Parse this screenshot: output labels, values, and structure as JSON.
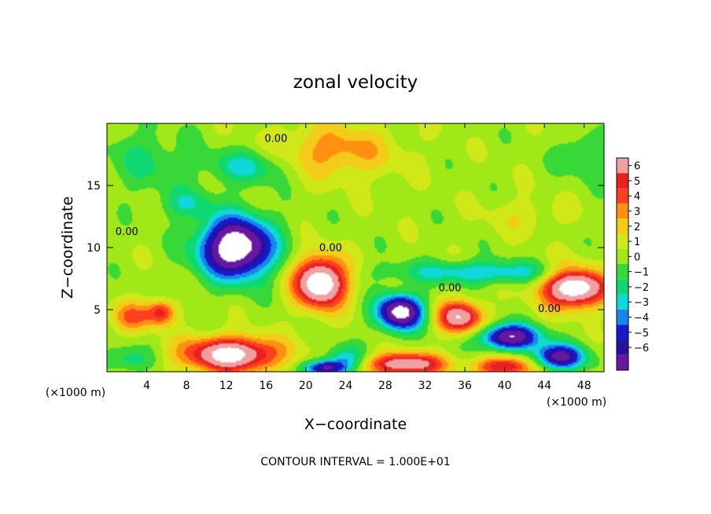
{
  "chart_data": {
    "type": "heatmap",
    "title": "zonal velocity",
    "xlabel": "X−coordinate",
    "ylabel": "Z−coordinate",
    "x_unit_left": "(×1000 m)",
    "x_unit_right": "(×1000 m)",
    "footer": "CONTOUR INTERVAL = 1.000E+01",
    "xlim": [
      0,
      50
    ],
    "ylim": [
      0,
      20
    ],
    "x_ticks": [
      4,
      8,
      12,
      16,
      20,
      24,
      28,
      32,
      36,
      40,
      44,
      48
    ],
    "y_ticks": [
      5,
      10,
      15
    ],
    "colorbar": {
      "range": [
        -6,
        6
      ],
      "labels": [
        "6",
        "5",
        "4",
        "3",
        "2",
        "1",
        "0",
        "−1",
        "−2",
        "−3",
        "−4",
        "−5",
        "−6"
      ],
      "colors": [
        "#f0a0a0",
        "#e82020",
        "#ff4020",
        "#ff9010",
        "#f2cc18",
        "#d0e818",
        "#a0e818",
        "#38d838",
        "#10d870",
        "#10d8d8",
        "#1888e8",
        "#1818d0",
        "#2810a0",
        "#6818a0"
      ]
    },
    "background_value": 0.5,
    "features": [
      {
        "x": 13,
        "z": 10,
        "rx": 3.6,
        "rz": 2.4,
        "value": -9
      },
      {
        "x": 21.5,
        "z": 7.2,
        "rx": 2.6,
        "rz": 2.0,
        "value": 8
      },
      {
        "x": 29.5,
        "z": 4.8,
        "rx": 2.3,
        "rz": 1.4,
        "value": -8
      },
      {
        "x": 35.5,
        "z": 4.4,
        "rx": 2.3,
        "rz": 1.3,
        "value": 6
      },
      {
        "x": 47,
        "z": 6.8,
        "rx": 3.2,
        "rz": 1.6,
        "value": 8
      },
      {
        "x": 40.5,
        "z": 2.8,
        "rx": 3.0,
        "rz": 1.0,
        "value": -7
      },
      {
        "x": 12.5,
        "z": 1.4,
        "rx": 4.8,
        "rz": 1.4,
        "value": 7
      },
      {
        "x": 5.5,
        "z": 4.8,
        "rx": 1.4,
        "rz": 1.0,
        "value": 4
      },
      {
        "x": 2.5,
        "z": 4.4,
        "rx": 2.2,
        "rz": 1.2,
        "value": 3
      },
      {
        "x": 30,
        "z": 0.6,
        "rx": 4.0,
        "rz": 0.9,
        "value": 6
      },
      {
        "x": 24,
        "z": 1.0,
        "rx": 2.0,
        "rz": 1.0,
        "value": -3
      },
      {
        "x": 45.5,
        "z": 1.2,
        "rx": 2.6,
        "rz": 1.0,
        "value": -6
      },
      {
        "x": 40,
        "z": 0.4,
        "rx": 2.8,
        "rz": 0.8,
        "value": 5
      },
      {
        "x": 22,
        "z": 0.3,
        "rx": 2.0,
        "rz": 0.6,
        "value": -6
      },
      {
        "x": 38,
        "z": 8.0,
        "rx": 9.0,
        "rz": 0.9,
        "value": -3
      },
      {
        "x": 23,
        "z": 17.8,
        "rx": 6.0,
        "rz": 2.2,
        "value": 2.5
      },
      {
        "x": 14,
        "z": 16.5,
        "rx": 4.0,
        "rz": 1.4,
        "value": -2.5
      },
      {
        "x": 4,
        "z": 17.0,
        "rx": 4.0,
        "rz": 2.5,
        "value": -1.5
      },
      {
        "x": 8,
        "z": 13.5,
        "rx": 2.5,
        "rz": 1.2,
        "value": -2
      },
      {
        "x": 48,
        "z": 17.5,
        "rx": 2.5,
        "rz": 1.8,
        "value": -1.5
      },
      {
        "x": 42,
        "z": 12.5,
        "rx": 4.0,
        "rz": 1.5,
        "value": 1
      },
      {
        "x": 2,
        "z": 1.0,
        "rx": 2.5,
        "rz": 1.0,
        "value": -2
      }
    ],
    "contour_labels": [
      {
        "text": "0.00",
        "x": 17,
        "z": 18.5
      },
      {
        "text": "0.00",
        "x": 2.0,
        "z": 11.0
      },
      {
        "text": "0.00",
        "x": 22.5,
        "z": 9.7
      },
      {
        "text": "0.00",
        "x": 34.5,
        "z": 6.5
      },
      {
        "text": "0.00",
        "x": 44.5,
        "z": 4.8
      }
    ]
  }
}
